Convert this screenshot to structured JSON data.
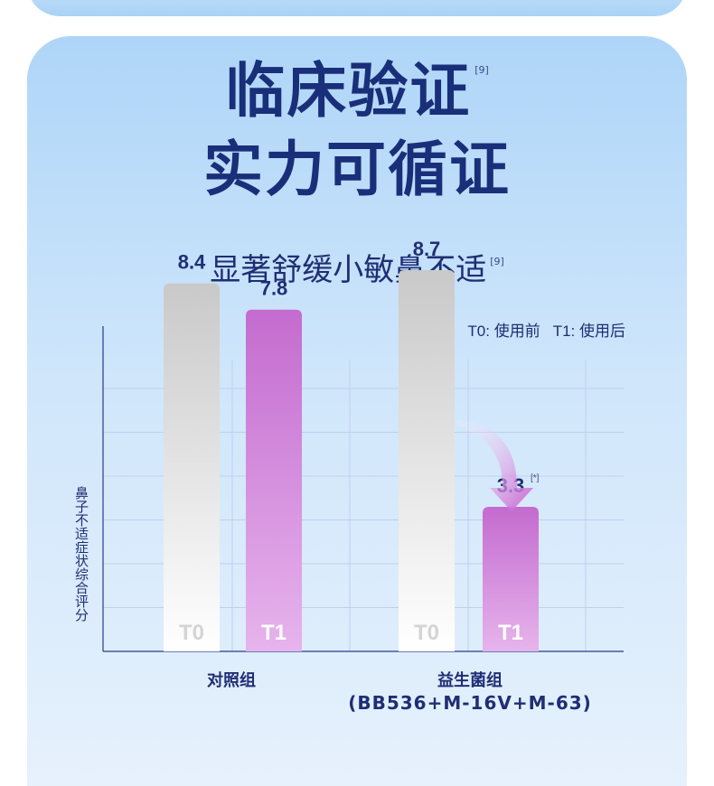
{
  "headline": {
    "line1": "临床验证",
    "line2": "实力可循证",
    "ref": "[9]"
  },
  "subtitle": {
    "text": "显著舒缓小敏鼻不适",
    "ref": "[9]"
  },
  "legend": {
    "t0": "T0: 使用前",
    "t1": "T1: 使用后"
  },
  "chart_data": {
    "type": "bar",
    "ylabel": "鼻子不适症状综合评分",
    "ylim": [
      0,
      10
    ],
    "grid": true,
    "groups": [
      {
        "name": "对照组",
        "sublabel": "",
        "bars": [
          {
            "label": "T0",
            "value": 8.4,
            "value_label": "8.4",
            "note": ""
          },
          {
            "label": "T1",
            "value": 7.8,
            "value_label": "7.8",
            "note": ""
          }
        ]
      },
      {
        "name": "益生菌组",
        "sublabel": "(BB536+M-16V+M-63)",
        "bars": [
          {
            "label": "T0",
            "value": 8.7,
            "value_label": "8.7",
            "note": ""
          },
          {
            "label": "T1",
            "value": 3.3,
            "value_label": "3.3",
            "note": "[*]"
          }
        ]
      }
    ],
    "colors": {
      "t0_top": "#c9c9c9",
      "t0_bottom": "#ffffff",
      "t1_top": "#c46bcf",
      "t1_bottom": "#e6b4ec",
      "grid": "#c2cdf0",
      "axis": "#2a3a8a",
      "value_text": "#1f2e74",
      "arrow": "#c75fcf"
    }
  }
}
